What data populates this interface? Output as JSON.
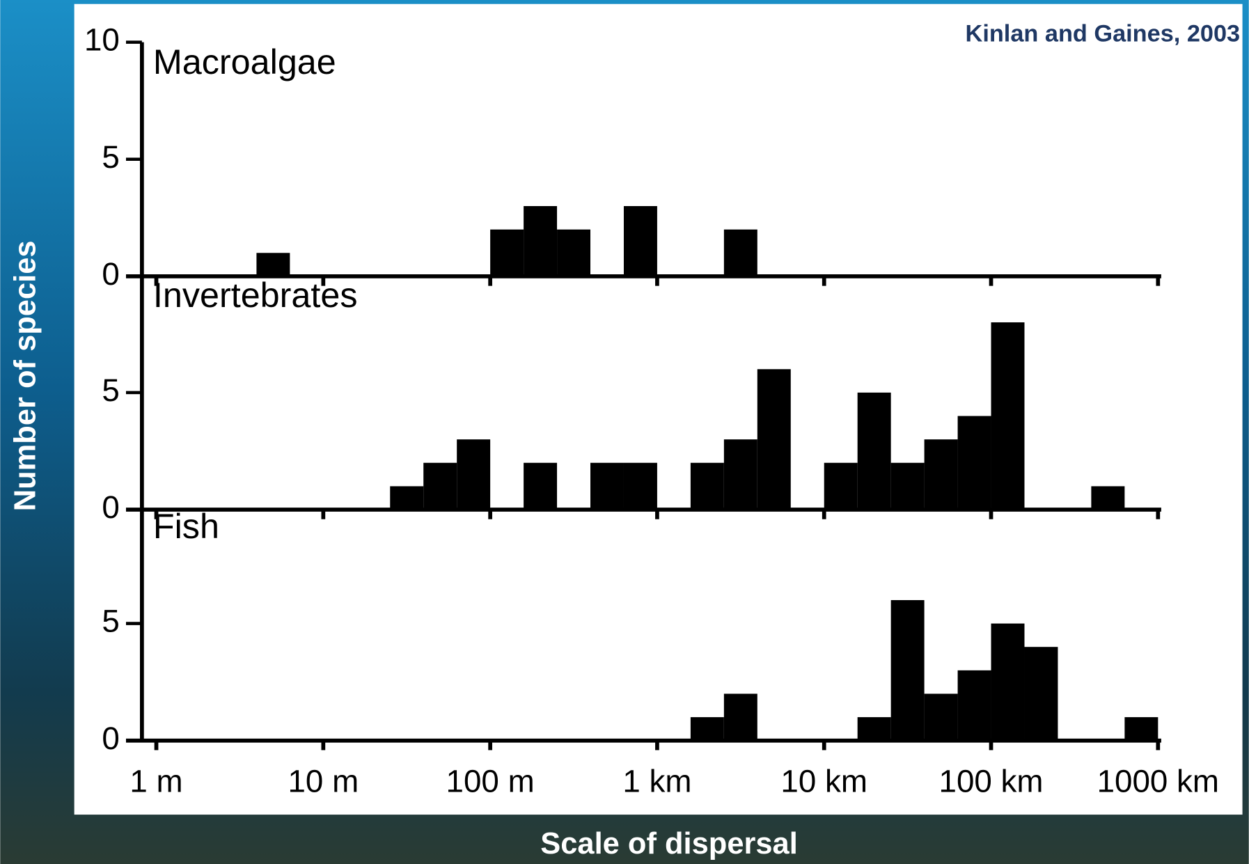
{
  "chart_data": {
    "type": "histogram",
    "source": "Kinlan and Gaines, 2003",
    "xlabel": "Scale of dispersal",
    "ylabel": "Number of species",
    "log_x": true,
    "color": "#000000",
    "bins": [
      1,
      1.585,
      2.512,
      3.981,
      6.31,
      10,
      15.85,
      25.12,
      39.81,
      63.1,
      100,
      158.5,
      251.2,
      398.1,
      631,
      1000,
      1585,
      2512,
      3981,
      6310,
      10000,
      15850,
      25120,
      39810,
      63100,
      100000,
      158500,
      251200,
      398100,
      631000,
      1000000
    ],
    "xlim": [
      0.82,
      1045000
    ],
    "xticks": [
      {
        "value": 1,
        "label": "1 m"
      },
      {
        "value": 10,
        "label": "10 m"
      },
      {
        "value": 100,
        "label": "100 m"
      },
      {
        "value": 1000,
        "label": "1 km"
      },
      {
        "value": 10000,
        "label": "10 km"
      },
      {
        "value": 100000,
        "label": "100 km"
      },
      {
        "value": 1000000,
        "label": "1000 km"
      }
    ],
    "ylim": [
      0,
      10
    ],
    "panels": [
      {
        "title": "Macroalgae",
        "yticks": [
          0,
          5,
          10
        ],
        "counts": [
          0,
          0,
          0,
          1,
          0,
          0,
          0,
          0,
          0,
          0,
          2,
          3,
          2,
          0,
          3,
          0,
          0,
          2,
          0,
          0,
          0,
          0,
          0,
          0,
          0,
          0,
          0,
          0,
          0,
          0
        ]
      },
      {
        "title": "Invertebrates",
        "yticks": [
          0,
          5
        ],
        "counts": [
          0,
          0,
          0,
          0,
          0,
          0,
          0,
          1,
          2,
          3,
          0,
          2,
          0,
          2,
          2,
          0,
          2,
          3,
          6,
          0,
          2,
          5,
          2,
          3,
          4,
          8,
          0,
          0,
          1,
          0
        ]
      },
      {
        "title": "Fish",
        "yticks": [
          0,
          5
        ],
        "counts": [
          0,
          0,
          0,
          0,
          0,
          0,
          0,
          0,
          0,
          0,
          0,
          0,
          0,
          0,
          0,
          0,
          1,
          2,
          0,
          0,
          0,
          1,
          6,
          2,
          3,
          5,
          4,
          0,
          0,
          1
        ]
      }
    ]
  }
}
